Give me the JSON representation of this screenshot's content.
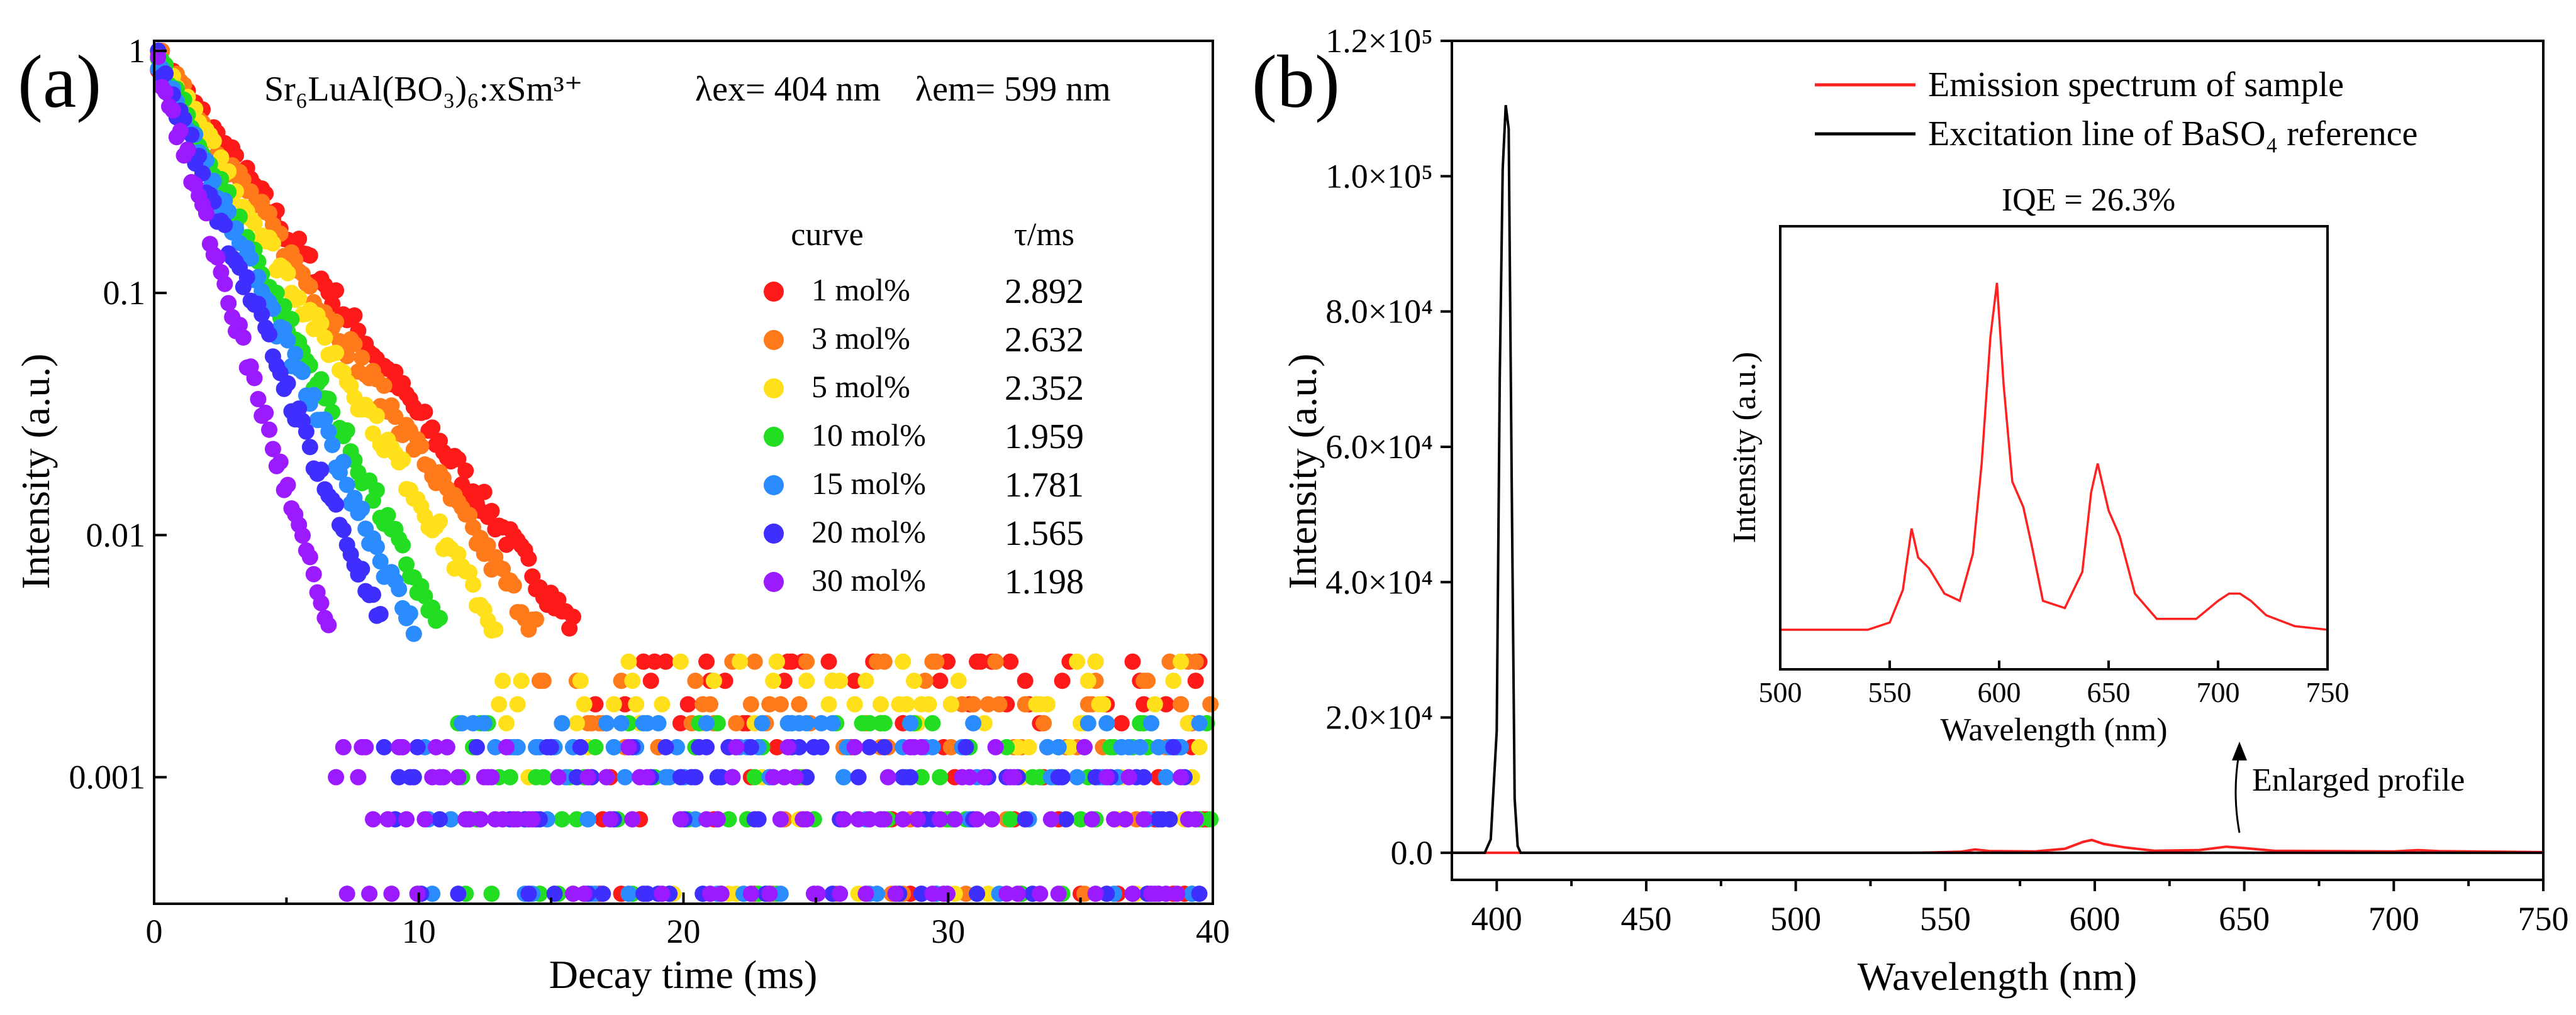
{
  "panels": [
    {
      "panel_label": "(a)",
      "chart_data": {
        "type": "scatter",
        "title": "Sr₆LuAl(BO₃)₆:xSm³⁺",
        "annotation_ex": "λex= 404 nm",
        "annotation_em": "λem= 599 nm",
        "xlabel": "Decay time (ms)",
        "ylabel": "Intensity (a.u.)",
        "xlim": [
          0,
          40
        ],
        "ylim_log": [
          0.0003,
          1.1
        ],
        "y_scale": "log",
        "x_ticks": [
          "0",
          "10",
          "20",
          "30",
          "40"
        ],
        "y_ticks": [
          {
            "label": "1",
            "value": 1
          },
          {
            "label": "0.1",
            "value": 0.1
          },
          {
            "label": "0.01",
            "value": 0.01
          },
          {
            "label": "0.001",
            "value": 0.001
          }
        ],
        "legend_header_curve": "curve",
        "legend_header_tau": "τ/ms",
        "noise_floor": [
          0.00033,
          0.00067,
          0.001,
          0.00133,
          0.00167,
          0.002,
          0.0025,
          0.003
        ],
        "series": [
          {
            "name": "1 mol%",
            "tau": "2.892",
            "tau_value": 2.892,
            "color": "#ff1a1a",
            "floor_start_ms": 17.5
          },
          {
            "name": "3 mol%",
            "tau": "2.632",
            "tau_value": 2.632,
            "color": "#ff7a1a",
            "floor_start_ms": 16.5
          },
          {
            "name": "5 mol%",
            "tau": "2.352",
            "tau_value": 2.352,
            "color": "#ffe01a",
            "floor_start_ms": 15.0
          },
          {
            "name": "10 mol%",
            "tau": "1.959",
            "tau_value": 1.959,
            "color": "#22dd22",
            "floor_start_ms": 13.0
          },
          {
            "name": "15 mol%",
            "tau": "1.781",
            "tau_value": 1.781,
            "color": "#2a8cff",
            "floor_start_ms": 12.0
          },
          {
            "name": "20 mol%",
            "tau": "1.565",
            "tau_value": 1.565,
            "color": "#3f2fff",
            "floor_start_ms": 10.5
          },
          {
            "name": "30 mol%",
            "tau": "1.198",
            "tau_value": 1.198,
            "color": "#9b1aff",
            "floor_start_ms": 8.0
          }
        ]
      }
    },
    {
      "panel_label": "(b)",
      "chart_data": {
        "type": "line",
        "xlabel": "Wavelength (nm)",
        "ylabel": "Intensity (a.u.)",
        "xlim": [
          385,
          750
        ],
        "ylim": [
          -4000,
          120000
        ],
        "x_ticks": [
          "400",
          "450",
          "500",
          "550",
          "600",
          "650",
          "700",
          "750"
        ],
        "y_ticks": [
          {
            "label": "0.0",
            "value": 0
          },
          {
            "label": "2.0×10⁴",
            "value": 20000
          },
          {
            "label": "4.0×10⁴",
            "value": 40000
          },
          {
            "label": "6.0×10⁴",
            "value": 60000
          },
          {
            "label": "8.0×10⁴",
            "value": 80000
          },
          {
            "label": "1.0×10⁵",
            "value": 100000
          },
          {
            "label": "1.2×10⁵",
            "value": 120000
          }
        ],
        "series": [
          {
            "name": "Emission spectrum of sample",
            "color": "#ff2020",
            "x": [
              385,
              540,
              555,
              560,
              565,
              580,
              590,
              596,
              599,
              603,
              610,
              620,
              635,
              644,
              650,
              660,
              700,
              708,
              715,
              750
            ],
            "y": [
              0,
              0,
              150,
              500,
              250,
              200,
              600,
              1600,
              1900,
              1300,
              800,
              300,
              400,
              900,
              700,
              300,
              200,
              400,
              250,
              100
            ]
          },
          {
            "name": "Excitation line of BaSO₄ reference",
            "color": "#000000",
            "x": [
              385,
              396,
              398,
              400,
              401,
              402,
              403,
              404,
              405,
              406,
              407,
              408,
              750
            ],
            "y": [
              0,
              0,
              2000,
              18000,
              70000,
              101000,
              110500,
              107000,
              55000,
              8000,
              1000,
              0,
              0
            ]
          }
        ],
        "inset": {
          "title": "IQE = 26.3%",
          "xlabel": "Wavelength (nm)",
          "ylabel": "Intensity (a.u.)",
          "xlim": [
            500,
            750
          ],
          "x_ticks": [
            "500",
            "550",
            "600",
            "650",
            "700",
            "750"
          ],
          "color": "#ff2020",
          "x": [
            500,
            540,
            550,
            556,
            560,
            563,
            568,
            575,
            582,
            588,
            592,
            596,
            599,
            602,
            606,
            611,
            615,
            620,
            630,
            638,
            642,
            645,
            650,
            655,
            662,
            672,
            690,
            700,
            705,
            710,
            715,
            722,
            735,
            750
          ],
          "y": [
            0.04,
            0.04,
            0.06,
            0.15,
            0.32,
            0.24,
            0.21,
            0.14,
            0.12,
            0.25,
            0.5,
            0.85,
            1.0,
            0.72,
            0.45,
            0.38,
            0.27,
            0.12,
            0.1,
            0.2,
            0.42,
            0.5,
            0.37,
            0.3,
            0.14,
            0.07,
            0.07,
            0.12,
            0.14,
            0.14,
            0.12,
            0.08,
            0.05,
            0.04
          ]
        },
        "annotation": "Enlarged profile"
      }
    }
  ]
}
